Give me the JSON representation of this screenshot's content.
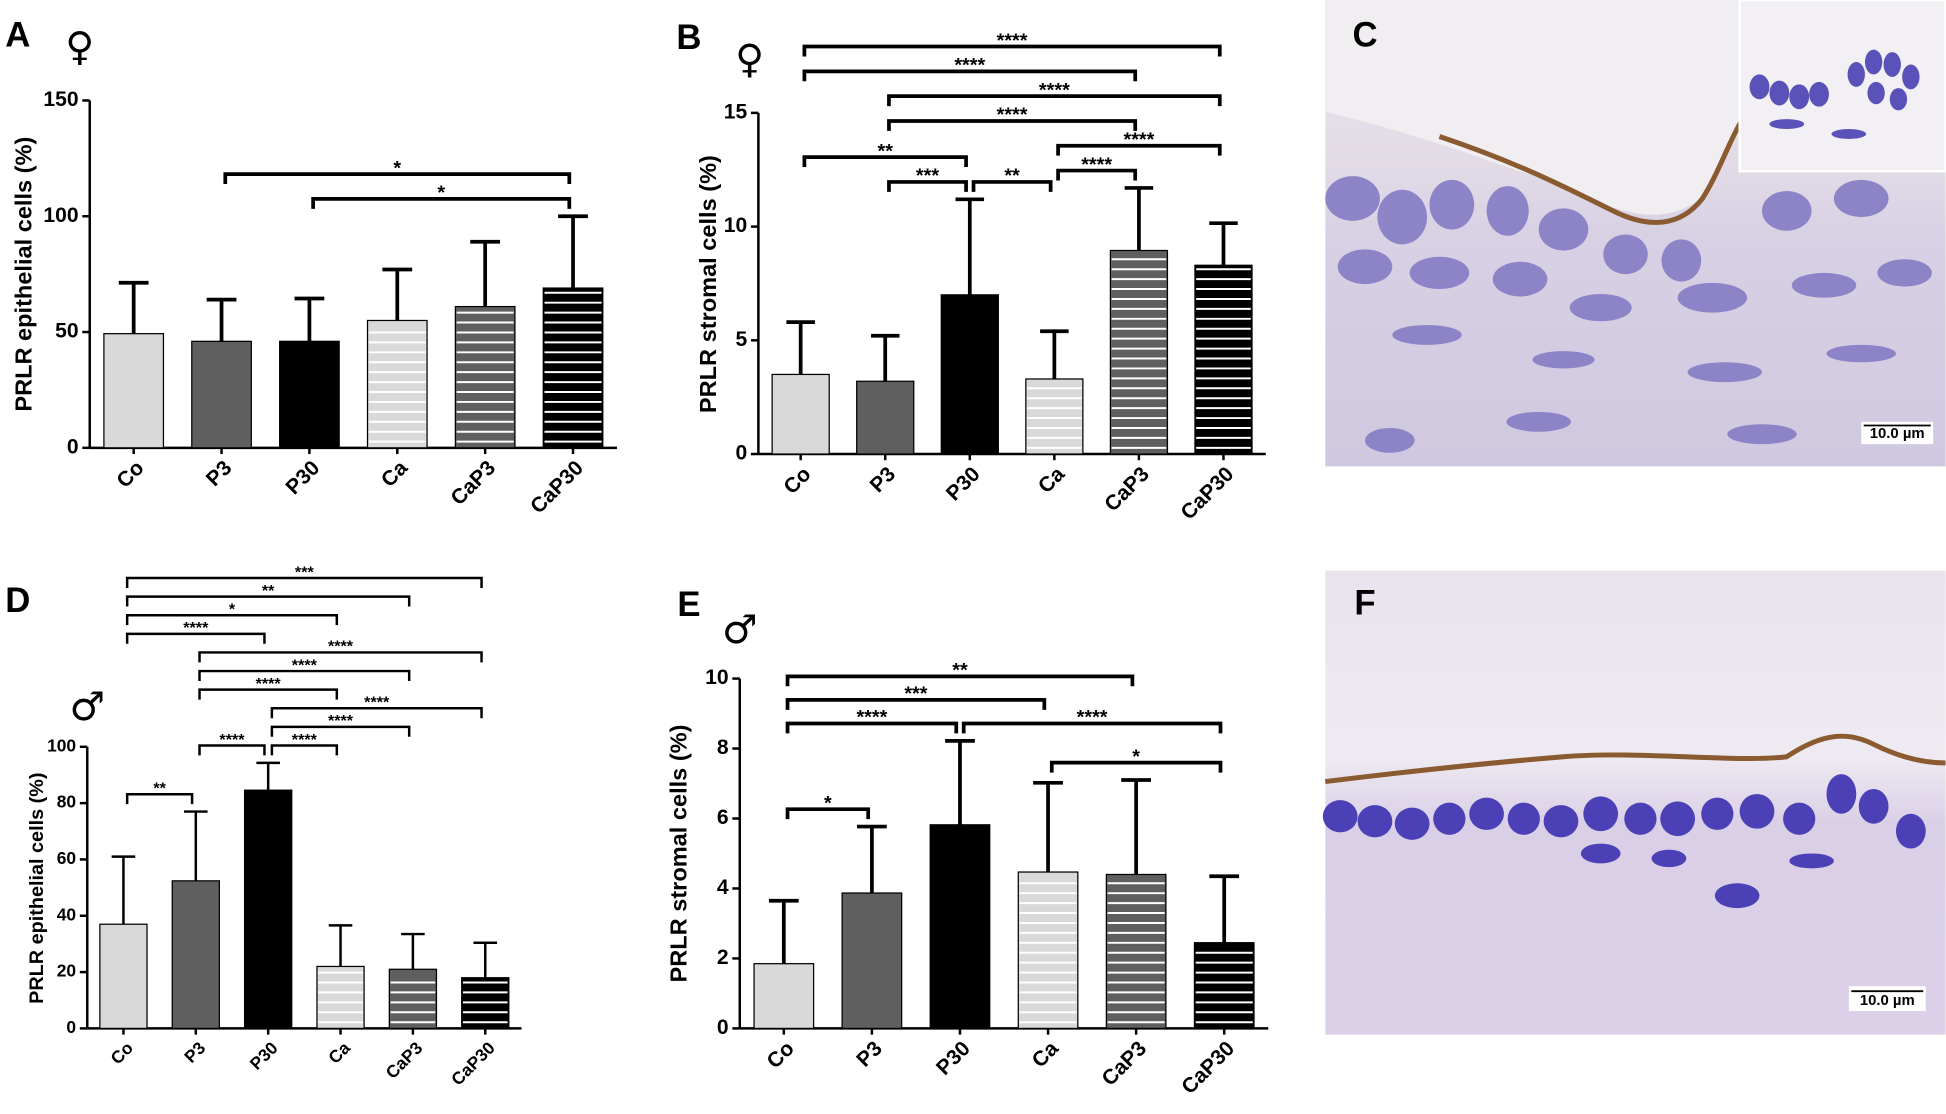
{
  "chart_data": [
    {
      "type": "bar",
      "panel": "A",
      "sex_symbol": "♀",
      "ylabel": "PRLR epithelial cells (%)",
      "categories": [
        "Co",
        "P3",
        "P30",
        "Ca",
        "CaP3",
        "CaP30"
      ],
      "values": [
        49.3,
        46,
        46,
        55,
        61,
        69
      ],
      "errors": [
        22,
        18,
        18.5,
        22,
        28,
        31
      ],
      "colors": [
        "#d9d9d9",
        "#5f5f5f",
        "#000000",
        "#d9d9d9",
        "#5f5f5f",
        "#000000"
      ],
      "hatched": [
        false,
        false,
        false,
        true,
        true,
        true
      ],
      "ylim": [
        0,
        150
      ],
      "yticks": [
        0,
        50,
        100,
        150
      ],
      "brackets": [
        {
          "from": "P30",
          "to": "CaP30",
          "label": "*"
        },
        {
          "from": "P3",
          "to": "CaP30",
          "label": "*"
        }
      ]
    },
    {
      "type": "bar",
      "panel": "B",
      "sex_symbol": "♀",
      "ylabel": "PRLR stromal cells (%)",
      "categories": [
        "Co",
        "P3",
        "P30",
        "Ca",
        "CaP3",
        "CaP30"
      ],
      "values": [
        3.5,
        3.2,
        7.0,
        3.3,
        8.95,
        8.3
      ],
      "errors": [
        2.3,
        2.0,
        4.2,
        2.1,
        2.75,
        1.85
      ],
      "colors": [
        "#d9d9d9",
        "#5f5f5f",
        "#000000",
        "#d9d9d9",
        "#5f5f5f",
        "#000000"
      ],
      "hatched": [
        false,
        false,
        false,
        true,
        true,
        true
      ],
      "ylim": [
        0,
        15
      ],
      "yticks": [
        0,
        5,
        10,
        15
      ],
      "brackets": [
        {
          "from": "P3",
          "to": "P30",
          "label": "***"
        },
        {
          "from": "P30",
          "to": "Ca",
          "label": "**"
        },
        {
          "from": "Co",
          "to": "P30",
          "label": "**"
        },
        {
          "from": "Ca",
          "to": "CaP3",
          "label": "****"
        },
        {
          "from": "Ca",
          "to": "CaP30",
          "label": "****"
        },
        {
          "from": "P3",
          "to": "CaP3",
          "label": "****"
        },
        {
          "from": "P3",
          "to": "CaP30",
          "label": "****"
        },
        {
          "from": "Co",
          "to": "CaP3",
          "label": "****"
        },
        {
          "from": "Co",
          "to": "CaP30",
          "label": "****"
        }
      ]
    },
    {
      "type": "bar",
      "panel": "D",
      "sex_symbol": "♂",
      "ylabel": "PRLR epithelial cells (%)",
      "categories": [
        "Co",
        "P3",
        "P30",
        "Ca",
        "CaP3",
        "CaP30"
      ],
      "values": [
        37,
        52.4,
        84.6,
        22,
        21,
        18
      ],
      "errors": [
        24,
        24.6,
        9.7,
        14.6,
        12.5,
        12.4
      ],
      "colors": [
        "#d9d9d9",
        "#5f5f5f",
        "#000000",
        "#d9d9d9",
        "#5f5f5f",
        "#000000"
      ],
      "hatched": [
        false,
        false,
        false,
        true,
        true,
        true
      ],
      "ylim": [
        0,
        100
      ],
      "yticks": [
        0,
        20,
        40,
        60,
        80,
        100
      ],
      "brackets": [
        {
          "from": "Co",
          "to": "P3",
          "label": "**"
        },
        {
          "from": "P3",
          "to": "P30",
          "label": "****"
        },
        {
          "from": "P30",
          "to": "Ca",
          "label": "****"
        },
        {
          "from": "P30",
          "to": "CaP3",
          "label": "****"
        },
        {
          "from": "P30",
          "to": "CaP30",
          "label": "****"
        },
        {
          "from": "P3",
          "to": "Ca",
          "label": "****"
        },
        {
          "from": "P3",
          "to": "CaP3",
          "label": "****"
        },
        {
          "from": "P3",
          "to": "CaP30",
          "label": "****"
        },
        {
          "from": "Co",
          "to": "P30",
          "label": "****"
        },
        {
          "from": "Co",
          "to": "Ca",
          "label": "*"
        },
        {
          "from": "Co",
          "to": "CaP3",
          "label": "**"
        },
        {
          "from": "Co",
          "to": "CaP30",
          "label": "***"
        }
      ]
    },
    {
      "type": "bar",
      "panel": "E",
      "sex_symbol": "♂",
      "ylabel": "PRLR stromal cells (%)",
      "categories": [
        "Co",
        "P3",
        "P30",
        "Ca",
        "CaP3",
        "CaP30"
      ],
      "values": [
        1.85,
        3.87,
        5.82,
        4.47,
        4.4,
        2.45
      ],
      "errors": [
        1.8,
        1.9,
        2.4,
        2.55,
        2.7,
        1.9
      ],
      "colors": [
        "#d9d9d9",
        "#5f5f5f",
        "#000000",
        "#d9d9d9",
        "#5f5f5f",
        "#000000"
      ],
      "hatched": [
        false,
        false,
        false,
        true,
        true,
        true
      ],
      "ylim": [
        0,
        10
      ],
      "yticks": [
        0,
        2,
        4,
        6,
        8,
        10
      ],
      "brackets": [
        {
          "from": "Co",
          "to": "P3",
          "label": "*"
        },
        {
          "from": "Ca",
          "to": "CaP30",
          "label": "*"
        },
        {
          "from": "P30",
          "to": "CaP30",
          "label": "****"
        },
        {
          "from": "Co",
          "to": "P30",
          "label": "****"
        },
        {
          "from": "Co",
          "to": "Ca",
          "label": "***"
        },
        {
          "from": "Co",
          "to": "CaP3",
          "label": "**"
        }
      ]
    }
  ],
  "micrographs": [
    {
      "label": "C",
      "scale_bar": "10.0 µm"
    },
    {
      "label": "F",
      "scale_bar": "10.0 µm"
    }
  ]
}
